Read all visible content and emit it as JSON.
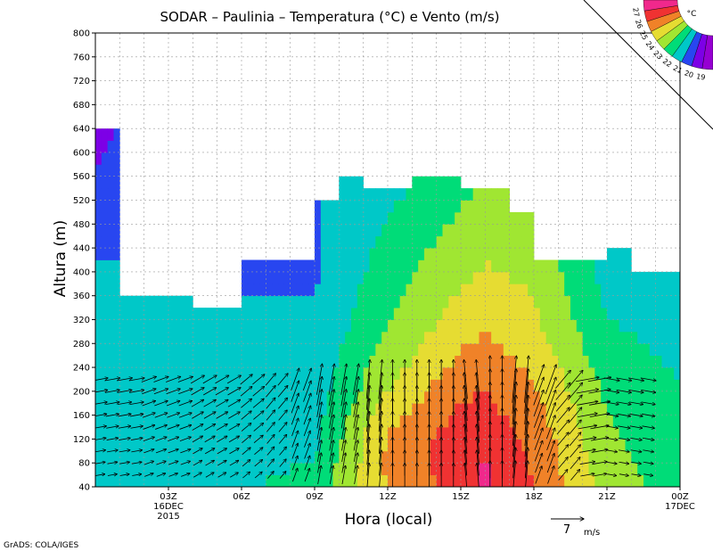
{
  "chart_data": {
    "type": "heatmap",
    "title": "SODAR – Paulinia – Temperatura (°C) e Vento (m/s)",
    "xlabel": "Hora (local)",
    "ylabel": "Altura (m)",
    "credit": "GrADS: COLA/IGES",
    "x_range_hours": [
      0,
      24
    ],
    "x_ticks": [
      {
        "hour": 3,
        "lines": [
          "03Z",
          "16DEC",
          "2015"
        ]
      },
      {
        "hour": 6,
        "lines": [
          "06Z"
        ]
      },
      {
        "hour": 9,
        "lines": [
          "09Z"
        ]
      },
      {
        "hour": 12,
        "lines": [
          "12Z"
        ]
      },
      {
        "hour": 15,
        "lines": [
          "15Z"
        ]
      },
      {
        "hour": 18,
        "lines": [
          "18Z"
        ]
      },
      {
        "hour": 21,
        "lines": [
          "21Z"
        ]
      },
      {
        "hour": 24,
        "lines": [
          "00Z",
          "17DEC"
        ]
      }
    ],
    "ylim": [
      40,
      800
    ],
    "y_ticks": [
      40,
      80,
      120,
      160,
      200,
      240,
      280,
      320,
      360,
      400,
      440,
      480,
      520,
      560,
      600,
      640,
      680,
      720,
      760,
      800
    ],
    "grid": true,
    "vector_reference": {
      "value": "7",
      "unit": "m/s"
    },
    "colorbar": {
      "unit": "°C",
      "labels": [
        "19",
        "20",
        "21",
        "22",
        "23",
        "24",
        "25",
        "26",
        "27"
      ],
      "colors": [
        "#9600d2",
        "#7d00e6",
        "#2846f0",
        "#00c8c8",
        "#00dc78",
        "#a0e632",
        "#e6dc32",
        "#f08228",
        "#f03232",
        "#f0288c"
      ]
    },
    "data_top_m": [
      {
        "hour": 0,
        "top": 640
      },
      {
        "hour": 1,
        "top": 360
      },
      {
        "hour": 2,
        "top": 360
      },
      {
        "hour": 3,
        "top": 360
      },
      {
        "hour": 4,
        "top": 340
      },
      {
        "hour": 5,
        "top": 340
      },
      {
        "hour": 6,
        "top": 420
      },
      {
        "hour": 7,
        "top": 420
      },
      {
        "hour": 8,
        "top": 420
      },
      {
        "hour": 9,
        "top": 520
      },
      {
        "hour": 10,
        "top": 560
      },
      {
        "hour": 11,
        "top": 540
      },
      {
        "hour": 12,
        "top": 540
      },
      {
        "hour": 13,
        "top": 560
      },
      {
        "hour": 14,
        "top": 560
      },
      {
        "hour": 15,
        "top": 540
      },
      {
        "hour": 16,
        "top": 540
      },
      {
        "hour": 17,
        "top": 500
      },
      {
        "hour": 18,
        "top": 420
      },
      {
        "hour": 19,
        "top": 420
      },
      {
        "hour": 20,
        "top": 420
      },
      {
        "hour": 21,
        "top": 440
      },
      {
        "hour": 22,
        "top": 400
      },
      {
        "hour": 23,
        "top": 400
      }
    ],
    "temperature_profiles": [
      {
        "hour": 0,
        "temp_c_at_40_to_640_step_40": [
          21.8,
          21.7,
          21.7,
          21.6,
          21.6,
          21.5,
          21.5,
          21.4,
          21.3,
          21.1,
          20.9,
          20.7,
          20.4,
          20.1,
          19.8,
          19.6
        ]
      },
      {
        "hour": 3,
        "temp_c_at_40_to_360_step_40": [
          21.8,
          21.7,
          21.7,
          21.6,
          21.5,
          21.4,
          21.2,
          21.1,
          21.0
        ]
      },
      {
        "hour": 6,
        "temp_c_at_40_to_420_step_40": [
          21.8,
          21.7,
          21.7,
          21.6,
          21.5,
          21.4,
          21.3,
          21.2,
          21.0,
          20.9
        ]
      },
      {
        "hour": 9,
        "temp_c_at_40_to_520_step_40": [
          22.5,
          22.0,
          21.8,
          21.6,
          21.5,
          21.4,
          21.3,
          21.1,
          21.0,
          20.9,
          20.9,
          20.9,
          20.9
        ]
      },
      {
        "hour": 12,
        "temp_c_at_40_to_540_step_40": [
          25.0,
          25.2,
          25.1,
          24.6,
          24.0,
          23.6,
          23.2,
          22.9,
          22.7,
          22.5,
          22.3,
          22.1,
          21.8,
          21.6
        ]
      },
      {
        "hour": 15,
        "temp_c_at_40_to_540_step_40": [
          26.5,
          26.6,
          26.5,
          26.2,
          25.8,
          25.3,
          24.9,
          24.5,
          24.1,
          23.8,
          23.5,
          23.2,
          22.9,
          22.7
        ]
      },
      {
        "hour": 16,
        "temp_c_at_40_to_540_step_40": [
          27.2,
          27.1,
          26.8,
          26.4,
          26.0,
          25.6,
          25.2,
          24.8,
          24.4,
          24.1,
          23.8,
          23.5,
          23.2,
          23.0
        ]
      },
      {
        "hour": 18,
        "temp_c_at_40_to_420_step_40": [
          26.0,
          25.9,
          25.7,
          25.4,
          25.1,
          24.8,
          24.5,
          24.2,
          24.0,
          23.8
        ]
      },
      {
        "hour": 21,
        "temp_c_at_40_to_440_step_40": [
          23.6,
          23.4,
          23.2,
          23.0,
          22.8,
          22.5,
          22.2,
          22.0,
          21.8,
          21.6,
          21.5
        ]
      },
      {
        "hour": 24,
        "temp_c_at_40_to_400_step_40": [
          22.4,
          22.3,
          22.2,
          22.1,
          22.0,
          21.9,
          21.8,
          21.7,
          21.6,
          21.5
        ]
      }
    ],
    "wind_vectors": {
      "speed_m_s_by_hour": [
        2,
        2,
        2,
        2,
        2,
        2,
        2,
        2,
        3,
        4,
        4,
        5,
        5,
        5,
        5,
        5,
        6,
        6,
        4,
        3,
        3,
        2,
        2,
        2
      ],
      "direction_from_deg_by_hour": [
        260,
        260,
        250,
        250,
        240,
        240,
        230,
        220,
        200,
        190,
        190,
        185,
        180,
        180,
        180,
        175,
        180,
        185,
        200,
        220,
        260,
        280,
        280,
        280
      ]
    }
  }
}
